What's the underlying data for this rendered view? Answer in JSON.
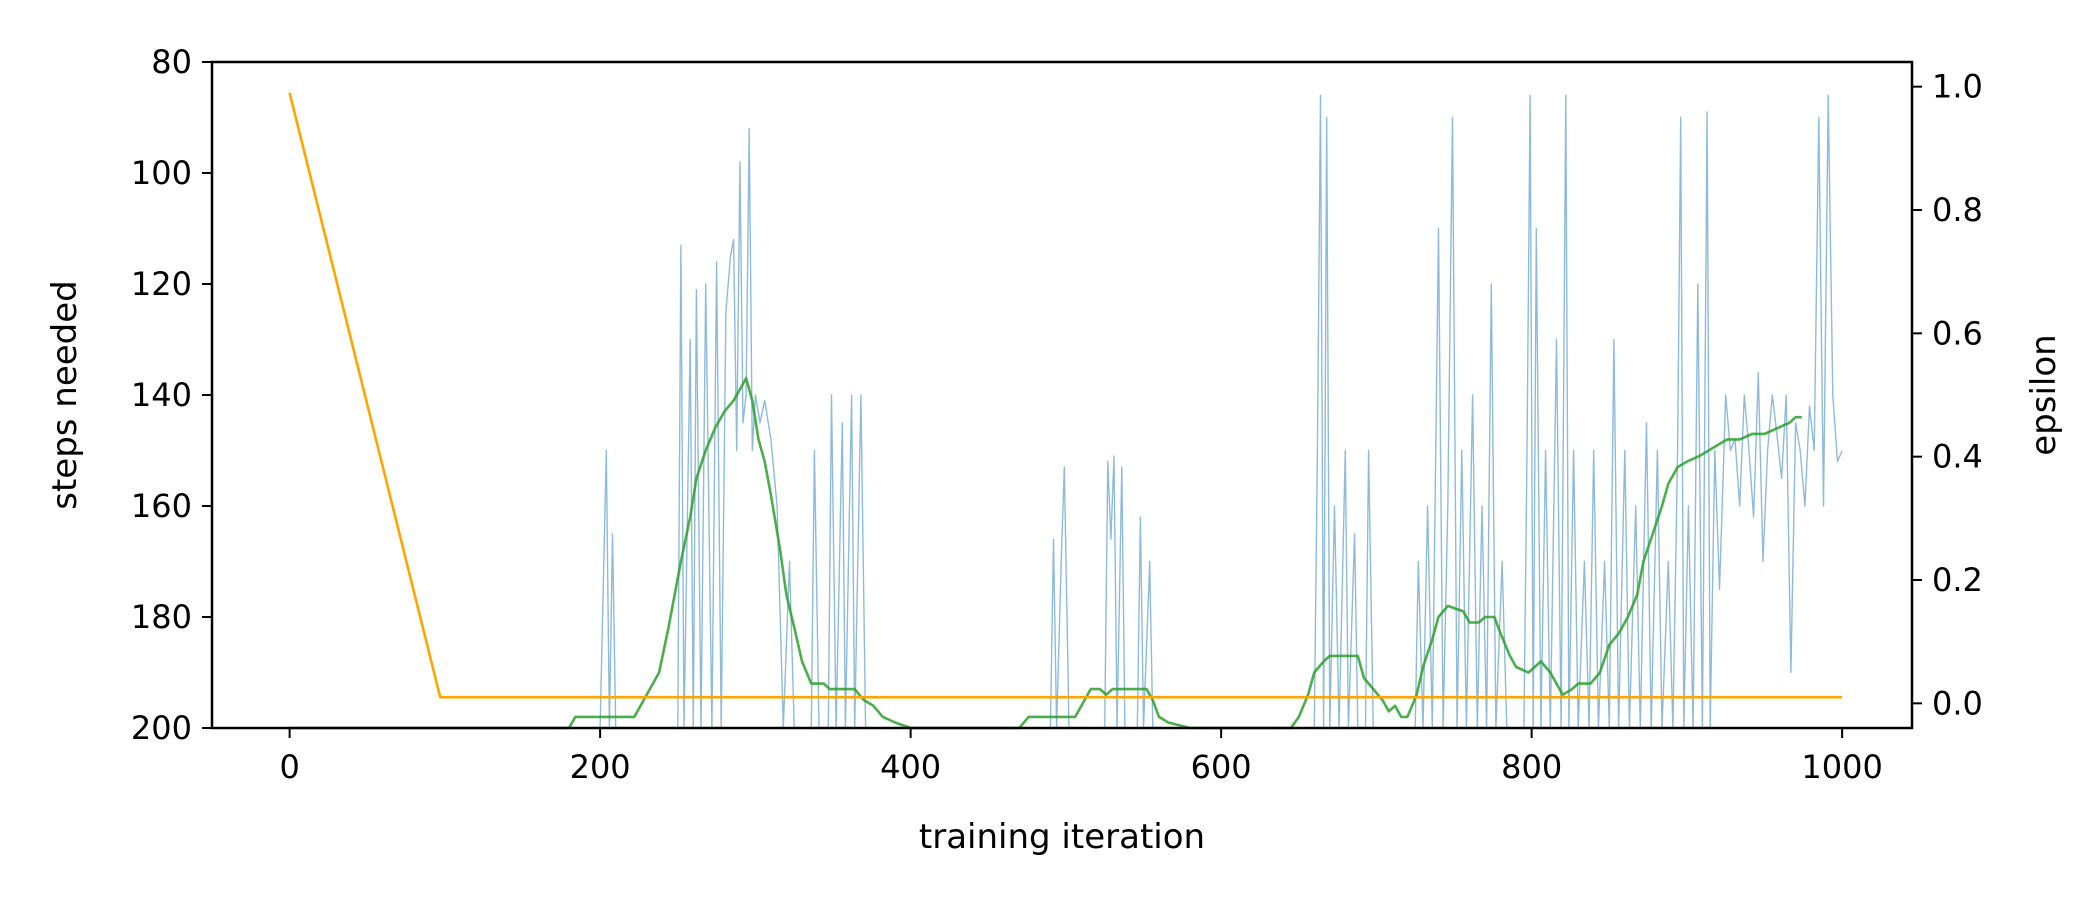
{
  "chart_data": {
    "type": "line",
    "xlabel": "training iteration",
    "ylabel_left": "steps needed",
    "ylabel_right": "epsilon",
    "xlim": [
      -50,
      1045
    ],
    "ylim_left": [
      200,
      80
    ],
    "ylim_right": [
      -0.04,
      1.04
    ],
    "left_axis_inverted": true,
    "grid": false,
    "x_ticks": [
      0,
      200,
      400,
      600,
      800,
      1000
    ],
    "x_tick_labels": [
      "0",
      "200",
      "400",
      "600",
      "800",
      "1000"
    ],
    "y_left_ticks": [
      80,
      100,
      120,
      140,
      160,
      180,
      200
    ],
    "y_left_tick_labels": [
      "80",
      "100",
      "120",
      "140",
      "160",
      "180",
      "200"
    ],
    "y_right_ticks": [
      0.0,
      0.2,
      0.4,
      0.6,
      0.8,
      1.0
    ],
    "y_right_tick_labels": [
      "0.0",
      "0.2",
      "0.4",
      "0.6",
      "0.8",
      "1.0"
    ],
    "series": [
      {
        "axis": "left",
        "color": "#1f77b4",
        "opacity": 0.5,
        "sampling": "dense",
        "points": [
          [
            0,
            200
          ],
          [
            200,
            200
          ],
          [
            204,
            150
          ],
          [
            206,
            200
          ],
          [
            208,
            165
          ],
          [
            210,
            200
          ],
          [
            230,
            200
          ],
          [
            250,
            200
          ],
          [
            252,
            113
          ],
          [
            254,
            200
          ],
          [
            258,
            130
          ],
          [
            260,
            200
          ],
          [
            262,
            121
          ],
          [
            265,
            200
          ],
          [
            268,
            120
          ],
          [
            272,
            200
          ],
          [
            275,
            116
          ],
          [
            278,
            200
          ],
          [
            281,
            125
          ],
          [
            284,
            115
          ],
          [
            286,
            112
          ],
          [
            288,
            150
          ],
          [
            290,
            98
          ],
          [
            292,
            145
          ],
          [
            294,
            140
          ],
          [
            296,
            92
          ],
          [
            298,
            150
          ],
          [
            300,
            140
          ],
          [
            303,
            145
          ],
          [
            306,
            141
          ],
          [
            310,
            148
          ],
          [
            314,
            160
          ],
          [
            318,
            200
          ],
          [
            322,
            170
          ],
          [
            325,
            200
          ],
          [
            330,
            200
          ],
          [
            336,
            200
          ],
          [
            338,
            150
          ],
          [
            341,
            200
          ],
          [
            347,
            200
          ],
          [
            349,
            140
          ],
          [
            352,
            200
          ],
          [
            356,
            145
          ],
          [
            358,
            200
          ],
          [
            362,
            140
          ],
          [
            364,
            200
          ],
          [
            368,
            140
          ],
          [
            371,
            200
          ],
          [
            490,
            200
          ],
          [
            492,
            166
          ],
          [
            494,
            200
          ],
          [
            497,
            170
          ],
          [
            499,
            153
          ],
          [
            502,
            200
          ],
          [
            525,
            200
          ],
          [
            527,
            152
          ],
          [
            529,
            166
          ],
          [
            531,
            151
          ],
          [
            533,
            200
          ],
          [
            536,
            153
          ],
          [
            538,
            200
          ],
          [
            546,
            200
          ],
          [
            548,
            162
          ],
          [
            550,
            200
          ],
          [
            554,
            170
          ],
          [
            556,
            200
          ],
          [
            660,
            200
          ],
          [
            662,
            150
          ],
          [
            664,
            86
          ],
          [
            666,
            200
          ],
          [
            668,
            90
          ],
          [
            670,
            200
          ],
          [
            673,
            160
          ],
          [
            676,
            200
          ],
          [
            680,
            150
          ],
          [
            682,
            200
          ],
          [
            686,
            165
          ],
          [
            688,
            200
          ],
          [
            693,
            200
          ],
          [
            695,
            150
          ],
          [
            698,
            200
          ],
          [
            725,
            200
          ],
          [
            727,
            170
          ],
          [
            730,
            200
          ],
          [
            733,
            160
          ],
          [
            736,
            200
          ],
          [
            740,
            110
          ],
          [
            743,
            200
          ],
          [
            746,
            160
          ],
          [
            749,
            90
          ],
          [
            752,
            200
          ],
          [
            755,
            150
          ],
          [
            758,
            200
          ],
          [
            762,
            140
          ],
          [
            765,
            200
          ],
          [
            768,
            160
          ],
          [
            771,
            200
          ],
          [
            774,
            120
          ],
          [
            777,
            200
          ],
          [
            781,
            170
          ],
          [
            784,
            200
          ],
          [
            788,
            200
          ],
          [
            795,
            200
          ],
          [
            797,
            150
          ],
          [
            799,
            86
          ],
          [
            801,
            200
          ],
          [
            803,
            110
          ],
          [
            806,
            200
          ],
          [
            809,
            150
          ],
          [
            812,
            200
          ],
          [
            816,
            130
          ],
          [
            819,
            200
          ],
          [
            822,
            86
          ],
          [
            824,
            200
          ],
          [
            827,
            150
          ],
          [
            830,
            200
          ],
          [
            834,
            170
          ],
          [
            837,
            200
          ],
          [
            840,
            150
          ],
          [
            843,
            200
          ],
          [
            847,
            170
          ],
          [
            850,
            200
          ],
          [
            853,
            130
          ],
          [
            856,
            200
          ],
          [
            860,
            150
          ],
          [
            863,
            200
          ],
          [
            867,
            160
          ],
          [
            870,
            200
          ],
          [
            874,
            145
          ],
          [
            877,
            200
          ],
          [
            881,
            150
          ],
          [
            884,
            200
          ],
          [
            888,
            170
          ],
          [
            891,
            200
          ],
          [
            894,
            150
          ],
          [
            896,
            90
          ],
          [
            898,
            200
          ],
          [
            901,
            160
          ],
          [
            904,
            200
          ],
          [
            907,
            120
          ],
          [
            910,
            200
          ],
          [
            913,
            89
          ],
          [
            915,
            200
          ],
          [
            918,
            150
          ],
          [
            921,
            175
          ],
          [
            925,
            140
          ],
          [
            928,
            150
          ],
          [
            931,
            148
          ],
          [
            934,
            160
          ],
          [
            937,
            140
          ],
          [
            940,
            150
          ],
          [
            943,
            162
          ],
          [
            946,
            136
          ],
          [
            949,
            170
          ],
          [
            952,
            150
          ],
          [
            955,
            140
          ],
          [
            958,
            147
          ],
          [
            961,
            155
          ],
          [
            964,
            140
          ],
          [
            967,
            190
          ],
          [
            970,
            145
          ],
          [
            973,
            150
          ],
          [
            976,
            160
          ],
          [
            979,
            142
          ],
          [
            982,
            150
          ],
          [
            985,
            90
          ],
          [
            988,
            160
          ],
          [
            991,
            86
          ],
          [
            994,
            140
          ],
          [
            997,
            152
          ],
          [
            1000,
            150
          ]
        ]
      },
      {
        "axis": "left",
        "color": "#2ca02c",
        "opacity": 0.85,
        "sampling": "smoothed",
        "points": [
          [
            0,
            200
          ],
          [
            180,
            200
          ],
          [
            184,
            198
          ],
          [
            222,
            198
          ],
          [
            228,
            195
          ],
          [
            234,
            192
          ],
          [
            238,
            190
          ],
          [
            244,
            182
          ],
          [
            252,
            170
          ],
          [
            258,
            162
          ],
          [
            262,
            155
          ],
          [
            268,
            150
          ],
          [
            274,
            146
          ],
          [
            280,
            143
          ],
          [
            286,
            141
          ],
          [
            290,
            139
          ],
          [
            294,
            137
          ],
          [
            298,
            141
          ],
          [
            302,
            148
          ],
          [
            306,
            152
          ],
          [
            310,
            158
          ],
          [
            316,
            168
          ],
          [
            320,
            176
          ],
          [
            326,
            183
          ],
          [
            330,
            188
          ],
          [
            336,
            192
          ],
          [
            344,
            192
          ],
          [
            348,
            193
          ],
          [
            364,
            193
          ],
          [
            370,
            195
          ],
          [
            376,
            196
          ],
          [
            382,
            198
          ],
          [
            390,
            199
          ],
          [
            400,
            200
          ],
          [
            470,
            200
          ],
          [
            476,
            198
          ],
          [
            506,
            198
          ],
          [
            512,
            195
          ],
          [
            516,
            193
          ],
          [
            522,
            193
          ],
          [
            526,
            194
          ],
          [
            530,
            193
          ],
          [
            535,
            193
          ],
          [
            552,
            193
          ],
          [
            556,
            195
          ],
          [
            560,
            198
          ],
          [
            566,
            199
          ],
          [
            580,
            200
          ],
          [
            645,
            200
          ],
          [
            650,
            198
          ],
          [
            656,
            194
          ],
          [
            660,
            190
          ],
          [
            666,
            188
          ],
          [
            670,
            187
          ],
          [
            688,
            187
          ],
          [
            692,
            191
          ],
          [
            698,
            193
          ],
          [
            704,
            195
          ],
          [
            708,
            197
          ],
          [
            712,
            196
          ],
          [
            716,
            198
          ],
          [
            720,
            198
          ],
          [
            726,
            194
          ],
          [
            730,
            189
          ],
          [
            736,
            184
          ],
          [
            740,
            180
          ],
          [
            746,
            178
          ],
          [
            756,
            179
          ],
          [
            760,
            181
          ],
          [
            766,
            181
          ],
          [
            770,
            180
          ],
          [
            776,
            180
          ],
          [
            780,
            183
          ],
          [
            786,
            187
          ],
          [
            790,
            189
          ],
          [
            798,
            190
          ],
          [
            806,
            188
          ],
          [
            812,
            190
          ],
          [
            816,
            192
          ],
          [
            820,
            194
          ],
          [
            826,
            193
          ],
          [
            830,
            192
          ],
          [
            838,
            192
          ],
          [
            844,
            190
          ],
          [
            850,
            185
          ],
          [
            856,
            183
          ],
          [
            862,
            180
          ],
          [
            868,
            176
          ],
          [
            872,
            170
          ],
          [
            878,
            165
          ],
          [
            884,
            160
          ],
          [
            888,
            156
          ],
          [
            894,
            153
          ],
          [
            900,
            152
          ],
          [
            908,
            151
          ],
          [
            914,
            150
          ],
          [
            920,
            149
          ],
          [
            926,
            148
          ],
          [
            934,
            148
          ],
          [
            942,
            147
          ],
          [
            950,
            147
          ],
          [
            958,
            146
          ],
          [
            966,
            145
          ],
          [
            970,
            144
          ],
          [
            974,
            144
          ]
        ]
      },
      {
        "axis": "right",
        "color": "#ffa500",
        "opacity": 1,
        "points": [
          [
            0,
            0.99
          ],
          [
            97,
            0.01
          ],
          [
            1000,
            0.01
          ]
        ]
      }
    ]
  }
}
